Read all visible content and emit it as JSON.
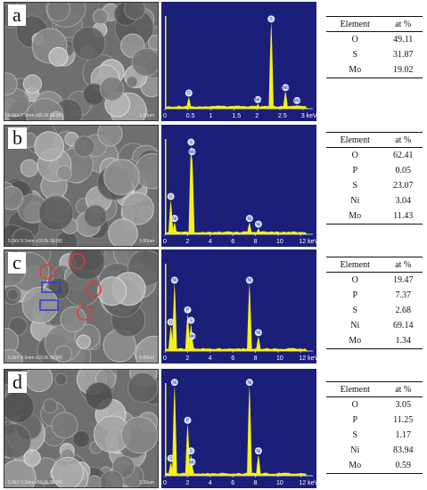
{
  "panels": [
    {
      "letter": "a",
      "sem_caption": "5.0kV 7.9mm x50.0k SE(M)",
      "sem_scale": "1.00um",
      "edx": {
        "axis_labels": [
          "0",
          "0.5",
          "1",
          "1.5",
          "2",
          "2.5",
          "3 keV"
        ],
        "axis_max": 3.1,
        "peaks": [
          {
            "label": "O",
            "x": 0.52,
            "h": 0.12
          },
          {
            "label": "Mo",
            "x": 2.02,
            "h": 0.05
          },
          {
            "label": "S",
            "x": 2.31,
            "h": 0.92
          },
          {
            "label": "Mo",
            "x": 2.62,
            "h": 0.18
          },
          {
            "label": "Mo",
            "x": 2.87,
            "h": 0.04
          }
        ]
      },
      "table": {
        "headers": [
          "Element",
          "at %"
        ],
        "rows": [
          [
            "O",
            "49.11"
          ],
          [
            "S",
            "31.87"
          ],
          [
            "Mo",
            "19.02"
          ]
        ]
      }
    },
    {
      "letter": "b",
      "sem_caption": "5.0kV 9.1mm x10.0k SE(M)",
      "sem_scale": "5.00um",
      "edx": {
        "axis_labels": [
          "0",
          "2",
          "4",
          "6",
          "8",
          "10",
          "12 keV"
        ],
        "axis_max": 12.6,
        "peaks": [
          {
            "label": "O",
            "x": 0.52,
            "h": 0.35
          },
          {
            "label": "Ni",
            "x": 0.85,
            "h": 0.12
          },
          {
            "label": "S",
            "x": 2.31,
            "h": 0.92
          },
          {
            "label": "Mo",
            "x": 2.4,
            "h": 0.82
          },
          {
            "label": "Ni",
            "x": 7.47,
            "h": 0.12
          },
          {
            "label": "Ni",
            "x": 8.26,
            "h": 0.06
          }
        ]
      },
      "table": {
        "headers": [
          "Element",
          "at %"
        ],
        "rows": [
          [
            "O",
            "62.41"
          ],
          [
            "P",
            "0.05"
          ],
          [
            "S",
            "23.07"
          ],
          [
            "Ni",
            "3.04"
          ],
          [
            "Mo",
            "11.43"
          ]
        ]
      }
    },
    {
      "letter": "c",
      "sem_caption": "5.0kV 9.1mm x10.0k SE(M)",
      "sem_scale": "5.00um",
      "edx": {
        "axis_labels": [
          "0",
          "2",
          "4",
          "6",
          "8",
          "10",
          "12 keV"
        ],
        "axis_max": 12.6,
        "peaks": [
          {
            "label": "O",
            "x": 0.52,
            "h": 0.28
          },
          {
            "label": "Ni",
            "x": 0.85,
            "h": 0.76
          },
          {
            "label": "P",
            "x": 2.01,
            "h": 0.42
          },
          {
            "label": "S",
            "x": 2.31,
            "h": 0.3
          },
          {
            "label": "Mo",
            "x": 2.4,
            "h": 0.12
          },
          {
            "label": "Ni",
            "x": 7.47,
            "h": 0.76
          },
          {
            "label": "Ni",
            "x": 8.26,
            "h": 0.16
          }
        ]
      },
      "table": {
        "headers": [
          "Element",
          "at %"
        ],
        "rows": [
          [
            "O",
            "19.47"
          ],
          [
            "P",
            "7.37"
          ],
          [
            "S",
            "2.68"
          ],
          [
            "Ni",
            "69.14"
          ],
          [
            "Mo",
            "1.34"
          ]
        ]
      }
    },
    {
      "letter": "d",
      "sem_caption": "5.0kV 9.2mm x10.0k SE(M)",
      "sem_scale": "5.00um",
      "edx": {
        "axis_labels": [
          "0",
          "2",
          "4",
          "6",
          "8",
          "10",
          "12 keV"
        ],
        "axis_max": 12.6,
        "peaks": [
          {
            "label": "O",
            "x": 0.52,
            "h": 0.14
          },
          {
            "label": "Ni",
            "x": 0.85,
            "h": 0.96
          },
          {
            "label": "P",
            "x": 2.01,
            "h": 0.55
          },
          {
            "label": "S",
            "x": 2.31,
            "h": 0.22
          },
          {
            "label": "Mo",
            "x": 2.4,
            "h": 0.1
          },
          {
            "label": "Ni",
            "x": 7.47,
            "h": 0.96
          },
          {
            "label": "Ni",
            "x": 8.26,
            "h": 0.22
          }
        ]
      },
      "table": {
        "headers": [
          "Element",
          "at %"
        ],
        "rows": [
          [
            "O",
            "3.05"
          ],
          [
            "P",
            "11.25"
          ],
          [
            "S",
            "1.17"
          ],
          [
            "Ni",
            "83.94"
          ],
          [
            "Mo",
            "0.59"
          ]
        ]
      }
    }
  ],
  "colors": {
    "edx_background": "#1b1f7a",
    "edx_peak": "#f2f21a",
    "sem_gray": "#6f6f6f"
  }
}
